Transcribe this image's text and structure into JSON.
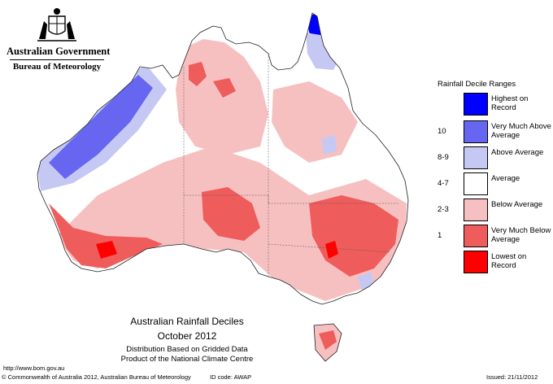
{
  "header": {
    "government": "Australian Government",
    "bureau": "Bureau of Meteorology"
  },
  "legend": {
    "title": "Rainfall Decile Ranges",
    "items": [
      {
        "code": "",
        "label": "Highest on Record",
        "color": "#0000ff"
      },
      {
        "code": "10",
        "label": "Very Much Above Average",
        "color": "#6666f0"
      },
      {
        "code": "8-9",
        "label": "Above Average",
        "color": "#c6c8f4"
      },
      {
        "code": "4-7",
        "label": "Average",
        "color": "#ffffff"
      },
      {
        "code": "2-3",
        "label": "Below Average",
        "color": "#f7c0c0"
      },
      {
        "code": "1",
        "label": "Very Much Below Average",
        "color": "#ef5c5c"
      },
      {
        "code": "",
        "label": "Lowest on Record",
        "color": "#ff0000"
      }
    ]
  },
  "caption": {
    "title": "Australian Rainfall Deciles",
    "period": "October 2012",
    "line1": "Distribution Based on Gridded Data",
    "line2": "Product of the National Climate Centre"
  },
  "footer": {
    "url": "http://www.bom.gov.au",
    "copyright": "© Commonwealth of Australia 2012, Australian Bureau of Meteorology",
    "id_code": "ID code: AWAP",
    "issued": "Issued: 21/11/2012"
  }
}
